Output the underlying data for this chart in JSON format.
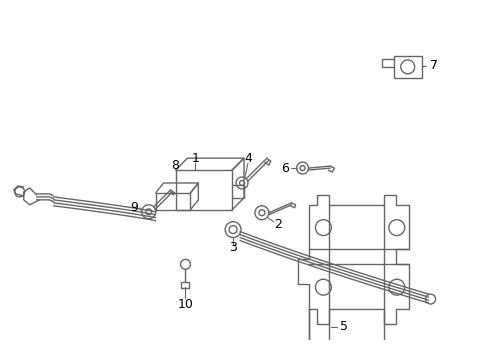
{
  "background_color": "#ffffff",
  "line_color": "#666666",
  "text_color": "#000000",
  "figsize": [
    4.9,
    3.6
  ],
  "dpi": 100,
  "line_width": 1.0
}
